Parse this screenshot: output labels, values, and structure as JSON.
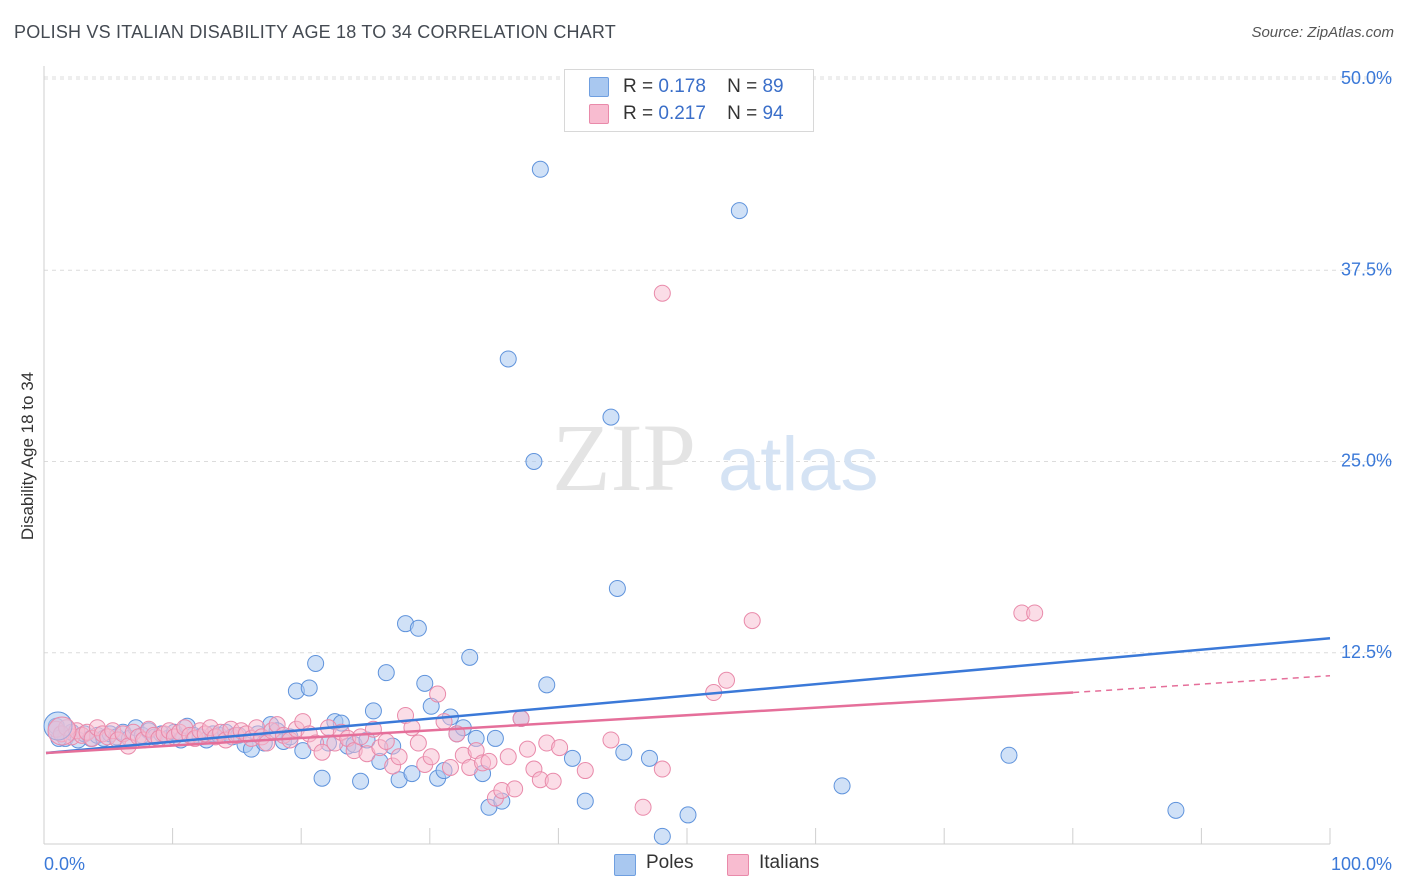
{
  "title": "POLISH VS ITALIAN DISABILITY AGE 18 TO 34 CORRELATION CHART",
  "source": "Source: ZipAtlas.com",
  "watermark": {
    "zip": "ZIP",
    "atlas": "atlas"
  },
  "legend_top": [
    {
      "r_label": "R =",
      "r_value": "0.178",
      "n_label": "N =",
      "n_value": "89",
      "color": "#a9c8f0",
      "border": "#6f9fe0"
    },
    {
      "r_label": "R =",
      "r_value": "0.217",
      "n_label": "N =",
      "n_value": "94",
      "color": "#f8bcd0",
      "border": "#e98aaa"
    }
  ],
  "legend_bottom": [
    {
      "label": "Poles",
      "color": "#a9c8f0",
      "border": "#6f9fe0"
    },
    {
      "label": "Italians",
      "color": "#f8bcd0",
      "border": "#e98aaa"
    }
  ],
  "chart_data": {
    "type": "scatter",
    "title": "POLISH VS ITALIAN DISABILITY AGE 18 TO 34 CORRELATION CHART",
    "xlabel": "",
    "ylabel": "Disability Age 18 to 34",
    "xlim": [
      0,
      100
    ],
    "ylim": [
      0,
      50
    ],
    "x_tick_labels": [
      "0.0%",
      "100.0%"
    ],
    "y_tick_labels": [
      "12.5%",
      "25.0%",
      "37.5%",
      "50.0%"
    ],
    "y_ticks": [
      12.5,
      25.0,
      37.5,
      50.0
    ],
    "grid": true,
    "colors": {
      "Poles": "#3b79d8",
      "Italians": "#e56f9a"
    },
    "series": [
      {
        "name": "Poles",
        "trend": {
          "x": [
            0,
            100
          ],
          "y": [
            5.95,
            13.45
          ]
        },
        "points": [
          [
            0.8,
            7.7
          ],
          [
            1.2,
            7.2
          ],
          [
            1.5,
            6.9
          ],
          [
            2.0,
            7.3
          ],
          [
            2.5,
            6.8
          ],
          [
            3.0,
            7.2
          ],
          [
            3.5,
            6.9
          ],
          [
            4.0,
            7.1
          ],
          [
            4.5,
            6.9
          ],
          [
            5.0,
            7.2
          ],
          [
            5.5,
            7.0
          ],
          [
            6.0,
            7.3
          ],
          [
            6.5,
            6.9
          ],
          [
            7.0,
            7.6
          ],
          [
            7.5,
            7.1
          ],
          [
            8.0,
            7.4
          ],
          [
            8.5,
            7.0
          ],
          [
            9.0,
            7.2
          ],
          [
            9.5,
            6.9
          ],
          [
            10.0,
            7.3
          ],
          [
            10.5,
            6.8
          ],
          [
            11.0,
            7.7
          ],
          [
            11.5,
            7.1
          ],
          [
            12.0,
            7.0
          ],
          [
            12.5,
            6.8
          ],
          [
            13.0,
            7.2
          ],
          [
            13.5,
            7.1
          ],
          [
            14.0,
            7.3
          ],
          [
            14.5,
            7.0
          ],
          [
            15.0,
            7.1
          ],
          [
            15.5,
            6.5
          ],
          [
            16.0,
            6.2
          ],
          [
            16.5,
            7.2
          ],
          [
            17.0,
            6.6
          ],
          [
            17.5,
            7.8
          ],
          [
            18.0,
            7.4
          ],
          [
            18.5,
            6.7
          ],
          [
            19.0,
            7.0
          ],
          [
            19.5,
            10.0
          ],
          [
            20.0,
            6.1
          ],
          [
            20.5,
            10.2
          ],
          [
            21.0,
            11.8
          ],
          [
            21.5,
            4.3
          ],
          [
            22.0,
            6.6
          ],
          [
            22.5,
            8.0
          ],
          [
            23.0,
            7.9
          ],
          [
            23.5,
            6.4
          ],
          [
            24.0,
            6.5
          ],
          [
            24.5,
            4.1
          ],
          [
            25.0,
            6.8
          ],
          [
            25.5,
            8.7
          ],
          [
            26.0,
            5.4
          ],
          [
            26.5,
            11.2
          ],
          [
            27.0,
            6.4
          ],
          [
            27.5,
            4.2
          ],
          [
            28.0,
            14.4
          ],
          [
            28.5,
            4.6
          ],
          [
            29.0,
            14.1
          ],
          [
            29.5,
            10.5
          ],
          [
            30.0,
            9.0
          ],
          [
            30.5,
            4.3
          ],
          [
            31.0,
            4.8
          ],
          [
            31.5,
            8.3
          ],
          [
            32.0,
            7.2
          ],
          [
            32.5,
            7.6
          ],
          [
            33.0,
            12.2
          ],
          [
            33.5,
            6.9
          ],
          [
            34.0,
            4.6
          ],
          [
            34.5,
            2.4
          ],
          [
            35.0,
            6.9
          ],
          [
            35.5,
            2.8
          ],
          [
            36.0,
            31.7
          ],
          [
            37.0,
            8.2
          ],
          [
            38.0,
            25.0
          ],
          [
            38.5,
            44.1
          ],
          [
            39.0,
            10.4
          ],
          [
            41.0,
            5.6
          ],
          [
            42.0,
            2.8
          ],
          [
            44.0,
            27.9
          ],
          [
            44.5,
            16.7
          ],
          [
            45.0,
            6.0
          ],
          [
            47.0,
            5.6
          ],
          [
            48.0,
            0.5
          ],
          [
            50.0,
            1.9
          ],
          [
            54.0,
            41.4
          ],
          [
            62.0,
            3.8
          ],
          [
            75.0,
            5.8
          ],
          [
            88.0,
            2.2
          ],
          [
            1.0,
            6.9
          ]
        ]
      },
      {
        "name": "Italians",
        "trend": {
          "x": [
            0,
            80
          ],
          "y": [
            5.95,
            9.9
          ]
        },
        "trend_dashed": {
          "x": [
            80,
            100
          ],
          "y": [
            9.9,
            11.0
          ]
        },
        "points": [
          [
            0.8,
            7.5
          ],
          [
            1.2,
            7.2
          ],
          [
            1.6,
            7.6
          ],
          [
            2.0,
            7.0
          ],
          [
            2.4,
            7.4
          ],
          [
            2.8,
            7.1
          ],
          [
            3.2,
            7.3
          ],
          [
            3.6,
            6.9
          ],
          [
            4.0,
            7.6
          ],
          [
            4.4,
            7.2
          ],
          [
            4.8,
            7.0
          ],
          [
            5.2,
            7.4
          ],
          [
            5.6,
            6.8
          ],
          [
            6.0,
            7.2
          ],
          [
            6.4,
            6.4
          ],
          [
            6.8,
            7.3
          ],
          [
            7.2,
            7.0
          ],
          [
            7.6,
            6.8
          ],
          [
            8.0,
            7.5
          ],
          [
            8.4,
            7.1
          ],
          [
            8.8,
            6.9
          ],
          [
            9.2,
            7.2
          ],
          [
            9.6,
            7.4
          ],
          [
            10.0,
            7.0
          ],
          [
            10.4,
            7.3
          ],
          [
            10.8,
            7.6
          ],
          [
            11.2,
            7.1
          ],
          [
            11.6,
            6.9
          ],
          [
            12.0,
            7.4
          ],
          [
            12.4,
            7.2
          ],
          [
            12.8,
            7.6
          ],
          [
            13.2,
            7.0
          ],
          [
            13.6,
            7.3
          ],
          [
            14.0,
            6.8
          ],
          [
            14.4,
            7.5
          ],
          [
            14.8,
            7.1
          ],
          [
            15.2,
            7.4
          ],
          [
            15.6,
            7.2
          ],
          [
            16.0,
            6.9
          ],
          [
            16.4,
            7.6
          ],
          [
            16.8,
            7.0
          ],
          [
            17.2,
            6.6
          ],
          [
            17.6,
            7.4
          ],
          [
            18.0,
            7.8
          ],
          [
            18.5,
            7.1
          ],
          [
            19.0,
            6.8
          ],
          [
            19.5,
            7.5
          ],
          [
            20.0,
            8.0
          ],
          [
            20.5,
            7.2
          ],
          [
            21.0,
            6.6
          ],
          [
            21.5,
            6.0
          ],
          [
            22.0,
            7.6
          ],
          [
            22.5,
            6.6
          ],
          [
            23.0,
            7.3
          ],
          [
            23.5,
            6.9
          ],
          [
            24.0,
            6.1
          ],
          [
            24.5,
            7.0
          ],
          [
            25.0,
            5.9
          ],
          [
            25.5,
            7.5
          ],
          [
            26.0,
            6.3
          ],
          [
            26.5,
            6.7
          ],
          [
            27.0,
            5.1
          ],
          [
            27.5,
            5.7
          ],
          [
            28.0,
            8.4
          ],
          [
            28.5,
            7.6
          ],
          [
            29.0,
            6.6
          ],
          [
            29.5,
            5.2
          ],
          [
            30.0,
            5.7
          ],
          [
            30.5,
            9.8
          ],
          [
            31.0,
            8.0
          ],
          [
            31.5,
            5.0
          ],
          [
            32.0,
            7.2
          ],
          [
            32.5,
            5.8
          ],
          [
            33.0,
            5.0
          ],
          [
            33.5,
            6.1
          ],
          [
            34.0,
            5.3
          ],
          [
            34.5,
            5.4
          ],
          [
            35.0,
            3.0
          ],
          [
            35.5,
            3.5
          ],
          [
            36.0,
            5.7
          ],
          [
            36.5,
            3.6
          ],
          [
            37.0,
            8.2
          ],
          [
            37.5,
            6.2
          ],
          [
            38.0,
            4.9
          ],
          [
            38.5,
            4.2
          ],
          [
            39.0,
            6.6
          ],
          [
            39.5,
            4.1
          ],
          [
            40.0,
            6.3
          ],
          [
            42.0,
            4.8
          ],
          [
            44.0,
            6.8
          ],
          [
            46.5,
            2.4
          ],
          [
            48.0,
            36.0
          ],
          [
            52.0,
            9.9
          ],
          [
            55.0,
            14.6
          ]
        ],
        "extra_points": [
          [
            53.0,
            10.7
          ],
          [
            48.0,
            4.9
          ],
          [
            76.0,
            15.1
          ],
          [
            77.0,
            15.1
          ]
        ]
      }
    ]
  }
}
